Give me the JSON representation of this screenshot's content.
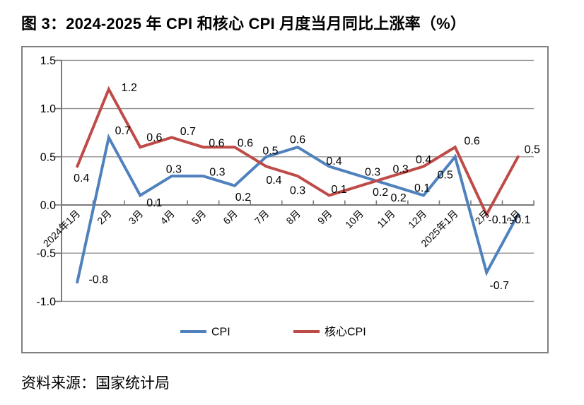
{
  "title": "图 3：2024-2025 年 CPI 和核心 CPI 月度当月同比上涨率（%）",
  "source": "资料来源：国家统计局",
  "chart_data": {
    "type": "line",
    "categories": [
      "2024年1月",
      "2月",
      "3月",
      "4月",
      "5月",
      "6月",
      "7月",
      "8月",
      "9月",
      "10月",
      "11月",
      "12月",
      "2025年1月",
      "2月",
      "3月"
    ],
    "series": [
      {
        "name": "CPI",
        "color": "#4F81BD",
        "values": [
          -0.8,
          0.7,
          0.1,
          0.3,
          0.3,
          0.2,
          0.5,
          0.6,
          0.4,
          0.3,
          0.2,
          0.1,
          0.5,
          -0.7,
          -0.1
        ],
        "label_offsets": [
          [
            30,
            -4
          ],
          [
            20,
            -10
          ],
          [
            20,
            10
          ],
          [
            3,
            -10
          ],
          [
            20,
            -6
          ],
          [
            12,
            16
          ],
          [
            6,
            -9
          ],
          [
            0,
            -11
          ],
          [
            7,
            -8
          ],
          [
            17,
            -6
          ],
          [
            9,
            17
          ],
          [
            -2,
            -11
          ],
          [
            -14,
            25
          ],
          [
            18,
            18
          ],
          [
            4,
            7
          ]
        ]
      },
      {
        "name": "核心CPI",
        "color": "#BE4B48",
        "values": [
          0.4,
          1.2,
          0.6,
          0.7,
          0.6,
          0.6,
          0.4,
          0.3,
          0.1,
          0.2,
          0.3,
          0.4,
          0.6,
          -0.1,
          0.5
        ],
        "label_offsets": [
          [
            6,
            16
          ],
          [
            29,
            -3
          ],
          [
            20,
            -14
          ],
          [
            23,
            -9
          ],
          [
            19,
            -6
          ],
          [
            15,
            -6
          ],
          [
            11,
            19
          ],
          [
            0,
            20
          ],
          [
            14,
            -9
          ],
          [
            28,
            9
          ],
          [
            12,
            -10
          ],
          [
            0,
            -10
          ],
          [
            24,
            -9
          ],
          [
            16,
            7
          ],
          [
            20,
            -11
          ]
        ]
      }
    ],
    "title": "图 3：2024-2025 年 CPI 和核心 CPI 月度当月同比上涨率（%）",
    "xlabel": "",
    "ylabel": "",
    "ylim": [
      -1.0,
      1.5
    ],
    "y_ticks": [
      "1.5",
      "1.0",
      "0.5",
      "0.0",
      "-0.5",
      "-1.0"
    ],
    "grid": true,
    "legend_position": "bottom",
    "axis_color": "#7a7a7a",
    "grid_color": "#949494",
    "label_color": "#000000"
  }
}
